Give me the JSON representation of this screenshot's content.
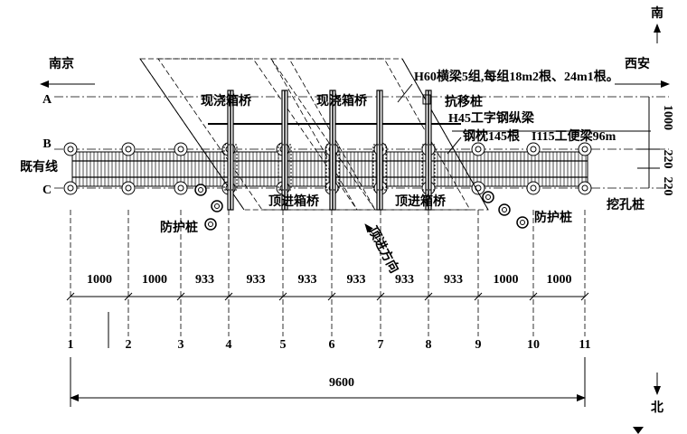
{
  "directions": {
    "south_city": "南京",
    "west_city": "西安",
    "south": "南",
    "north": "北"
  },
  "rows": [
    "A",
    "B",
    "C"
  ],
  "existing_line": "既有线",
  "cast_box_bridges": [
    "现浇箱桥",
    "现浇箱桥"
  ],
  "notes": {
    "cross_beams": "H60横梁5组,每组18m2根、24m1根。",
    "anti_shift_pile": "抗移桩",
    "longitudinal_beam": "H45工字钢纵梁",
    "sleepers": "钢枕145根",
    "temporary_beam": "I115工便梁96m"
  },
  "jacked_box_bridges": [
    "顶进箱桥",
    "顶进箱桥"
  ],
  "protection_piles": [
    "防护桩",
    "防护桩"
  ],
  "dug_pile": "挖孔桩",
  "jacking_direction": "顶进方向",
  "right_dimensions": [
    "1000",
    "220",
    "220"
  ],
  "spans": [
    "1000",
    "1000",
    "933",
    "933",
    "933",
    "933",
    "933",
    "933",
    "1000",
    "1000"
  ],
  "axes": [
    "1",
    "2",
    "3",
    "4",
    "5",
    "6",
    "7",
    "8",
    "9",
    "10",
    "11"
  ],
  "total_length": "9600"
}
